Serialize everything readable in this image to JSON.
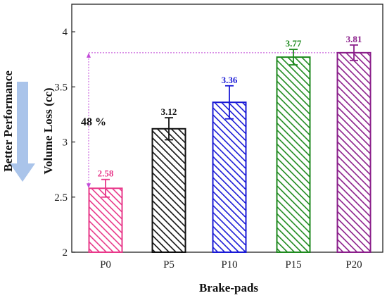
{
  "chart_data": {
    "type": "bar",
    "xlabel": "Brake-pads",
    "ylabel": "Volume Loss (cc)",
    "ylim": [
      2,
      4.25
    ],
    "yticks": [
      2,
      2.5,
      3,
      3.5,
      4
    ],
    "ytick_labels": [
      "2",
      "2.5",
      "3",
      "3.5",
      "4"
    ],
    "categories": [
      "P0",
      "P5",
      "P10",
      "P15",
      "P20"
    ],
    "values": [
      2.58,
      3.12,
      3.36,
      3.77,
      3.81
    ],
    "value_labels": [
      "2.58",
      "3.12",
      "3.36",
      "3.77",
      "3.81"
    ],
    "errors": [
      0.08,
      0.1,
      0.15,
      0.07,
      0.07
    ],
    "colors": [
      "#e8388a",
      "#111111",
      "#1a1ad6",
      "#1f8a1f",
      "#8b1f8b"
    ],
    "grid": false,
    "annotations": {
      "side_label": "Better Performance",
      "percent_label": "48 %",
      "arrow_color": "#aac4ea",
      "reference_color": "#c24ad8"
    }
  }
}
